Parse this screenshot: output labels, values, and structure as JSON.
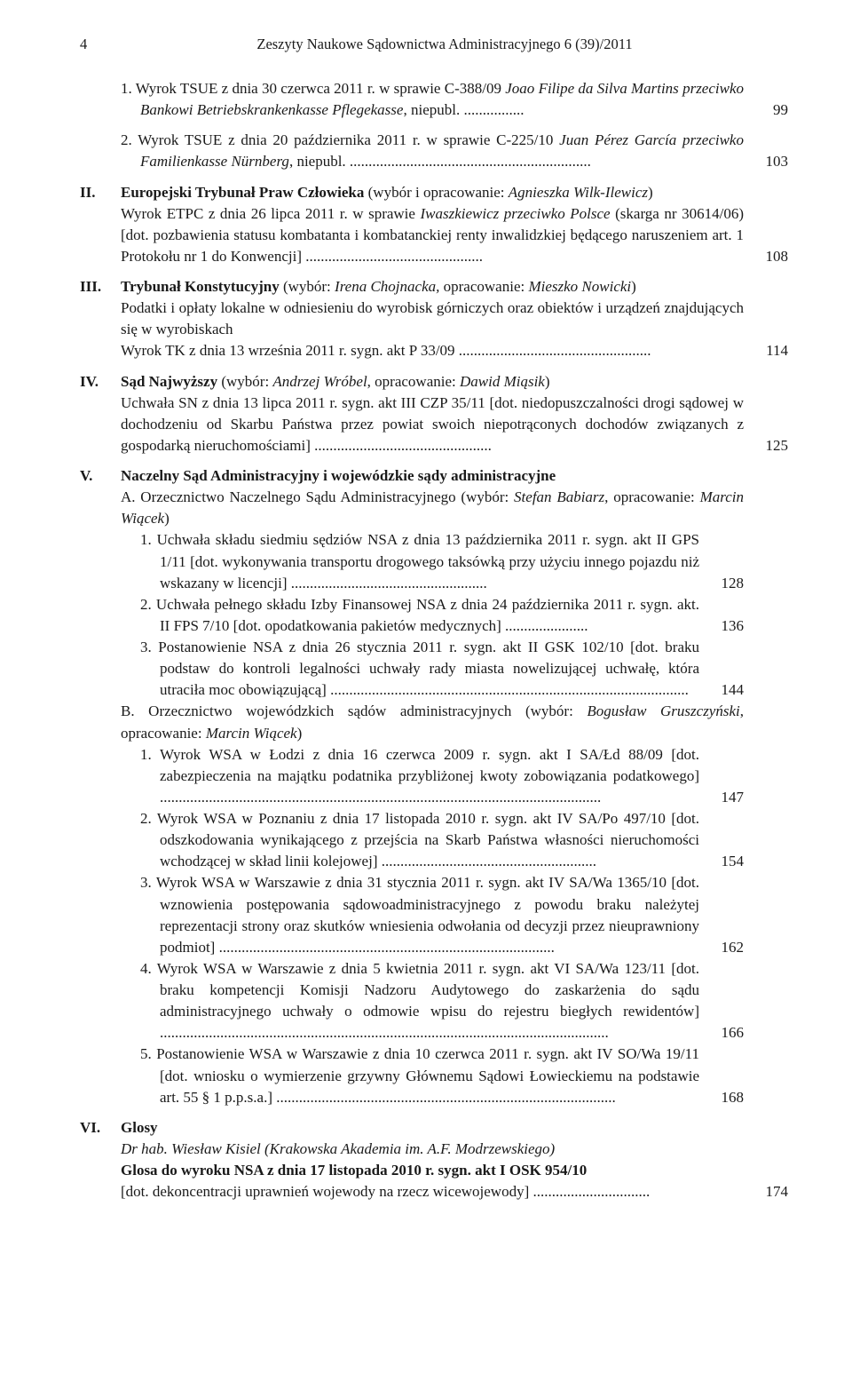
{
  "header": {
    "pagenum": "4",
    "title": "Zeszyty Naukowe Sądownictwa Administracyjnego 6 (39)/2011"
  },
  "e1": {
    "t1": "1. Wyrok TSUE z dnia 30 czerwca 2011 r. w sprawie C-388/09 ",
    "i1": "Joao Filipe da Silva Martins przeciwko Bankowi Betriebskrankenkasse Pflegekasse",
    "t2": ", niepubl. ................",
    "pg": "99"
  },
  "e2": {
    "t1": "2. Wyrok TSUE z dnia 20 października 2011 r. w sprawie C-225/10 ",
    "i1": "Juan Pérez García przeciwko Familienkasse Nürnberg",
    "t2": ", niepubl. ................................................................",
    "pg": "103"
  },
  "e3": {
    "roman": "II.",
    "h": "Europejski Trybunał Praw Człowieka",
    "t1": " (wybór i opracowanie: ",
    "i1": "Agnieszka Wilk-Ilewicz",
    "t2": ")",
    "line2a": "Wyrok ETPC z dnia 26 lipca 2011 r. w sprawie ",
    "line2i": "Iwaszkiewicz przeciwko Polsce",
    "line2b": " (skarga nr 30614/06) [dot. pozbawienia statusu kombatanta i kombatanckiej renty inwalidzkiej będącego naruszeniem art. 1 Protokołu nr 1 do Konwencji] ...............................................",
    "pg": "108"
  },
  "e4": {
    "roman": "III.",
    "h": "Trybunał Konstytucyjny",
    "t1": " (wybór: ",
    "i1": "Irena Chojnacka,",
    "t2": " opracowanie: ",
    "i2": "Mieszko Nowicki",
    "t3": ")",
    "line2": "Podatki i opłaty lokalne w odniesieniu do wyrobisk górniczych oraz obiektów i urządzeń znajdujących się w wyrobiskach",
    "line3": "Wyrok TK z dnia 13 września 2011 r. sygn. akt P 33/09 ...................................................",
    "pg": "114"
  },
  "e5": {
    "roman": "IV.",
    "h": "Sąd Najwyższy",
    "t1": " (wybór: ",
    "i1": "Andrzej Wróbel",
    "t2": ", opracowanie: ",
    "i2": "Dawid Miąsik",
    "t3": ")",
    "line2": "Uchwała SN z dnia 13 lipca 2011 r. sygn. akt III CZP 35/11 [dot. niedopuszczalności drogi sądowej w dochodzeniu od Skarbu Państwa przez powiat swoich niepotrąconych dochodów związanych z gospodarką nieruchomościami] ...............................................",
    "pg": "125"
  },
  "e6": {
    "roman": "V.",
    "h": "Naczelny Sąd Administracyjny i wojewódzkie sądy administracyjne"
  },
  "A": {
    "t1": "A. Orzecznictwo Naczelnego Sądu Administracyjnego (wybór: ",
    "i1": "Stefan Babiarz",
    "t2": ", opracowanie: ",
    "i2": "Marcin Wiącek",
    "t3": ")"
  },
  "A1": {
    "txt": "1. Uchwała składu siedmiu sędziów NSA z dnia 13 października 2011 r. sygn. akt II GPS 1/11 [dot. wykonywania transportu drogowego taksówką przy użyciu innego pojazdu niż wskazany w licencji] ....................................................",
    "pg": "128"
  },
  "A2": {
    "txt": "2. Uchwała pełnego składu Izby Finansowej NSA z dnia 24 października 2011 r. sygn. akt. II FPS 7/10 [dot. opodatkowania pakietów medycznych] ......................",
    "pg": "136"
  },
  "A3": {
    "txt": "3. Postanowienie NSA z dnia 26 stycznia 2011 r. sygn. akt II GSK 102/10 [dot. braku podstaw do kontroli legalności uchwały rady miasta nowelizującej uchwałę, która utraciła moc obowiązującą] ...............................................................................................",
    "pg": "144"
  },
  "B": {
    "t1": "B. Orzecznictwo wojewódzkich sądów administracyjnych (wybór: ",
    "i1": "Bogusław Gruszczyński",
    "t2": ", opracowanie: ",
    "i2": "Marcin Wiącek",
    "t3": ")"
  },
  "B1": {
    "txt": "1. Wyrok WSA w Łodzi z dnia 16 czerwca 2009 r. sygn. akt I SA/Łd 88/09 [dot. zabezpieczenia na majątku podatnika przybliżonej kwoty zobowiązania podatkowego] .....................................................................................................................",
    "pg": "147"
  },
  "B2": {
    "txt": "2. Wyrok WSA w Poznaniu z dnia 17 listopada 2010 r. sygn. akt IV SA/Po 497/10 [dot. odszkodowania wynikającego z przejścia na Skarb Państwa własności nieruchomości wchodzącej w skład linii kolejowej] .........................................................",
    "pg": "154"
  },
  "B3": {
    "txt": "3. Wyrok WSA w Warszawie z dnia 31 stycznia 2011 r. sygn. akt IV SA/Wa 1365/10 [dot. wznowienia postępowania sądowoadministracyjnego z powodu braku należytej reprezentacji strony oraz skutków wniesienia odwołania od decyzji przez nieuprawniony podmiot] .........................................................................................",
    "pg": "162"
  },
  "B4": {
    "txt": "4. Wyrok WSA w Warszawie z dnia 5 kwietnia 2011 r. sygn. akt VI SA/Wa 123/11 [dot. braku kompetencji Komisji Nadzoru Audytowego do zaskarżenia do sądu administracyjnego uchwały o odmowie wpisu do rejestru biegłych rewidentów] .......................................................................................................................",
    "pg": "166"
  },
  "B5": {
    "txt": "5. Postanowienie WSA w Warszawie z dnia 10 czerwca 2011 r. sygn. akt IV SO/Wa 19/11 [dot. wniosku o wymierzenie grzywny Głównemu Sądowi Łowieckiemu na podstawie art. 55 § 1 p.p.s.a.] ..........................................................................................",
    "pg": "168"
  },
  "e7": {
    "roman": "VI.",
    "h": "Glosy",
    "i1": "Dr hab. Wiesław Kisiel (Krakowska Akademia im. A.F. Modrzewskiego)",
    "b2": "Glosa do wyroku NSA z dnia 17 listopada 2010 r. sygn. akt I OSK 954/10",
    "t3": "[dot. dekoncentracji uprawnień wojewody na rzecz wicewojewody] ...............................",
    "pg": "174"
  }
}
